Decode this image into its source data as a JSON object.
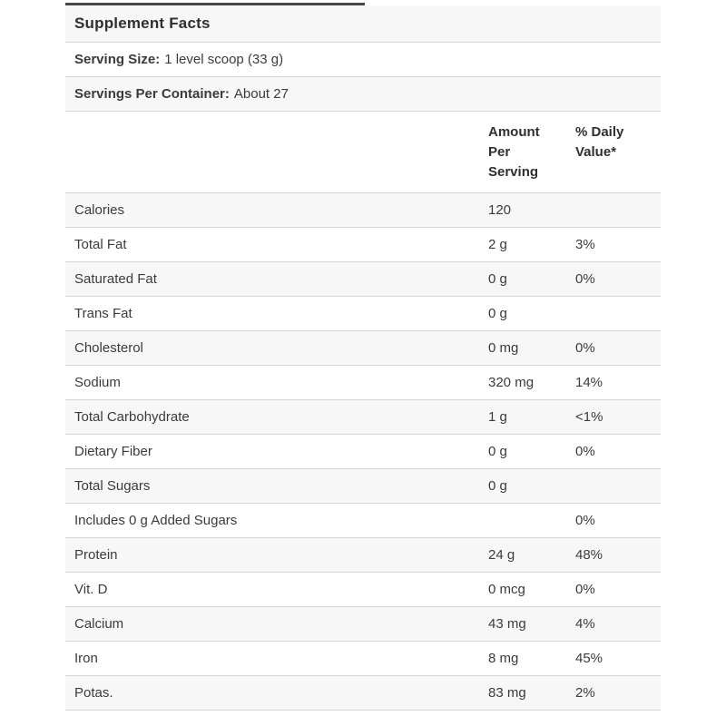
{
  "facts": {
    "title": "Supplement Facts",
    "serving_size": {
      "label": "Serving Size:",
      "value": "1 level scoop (33 g)"
    },
    "servings_per_container": {
      "label": "Servings Per Container:",
      "value": "About 27"
    },
    "columns": {
      "amount_header": "Amount Per Serving",
      "daily_value_header": "% Daily Value*"
    },
    "rows": [
      {
        "name": "Calories",
        "amount": "120",
        "daily_value": ""
      },
      {
        "name": "Total Fat",
        "amount": "2 g",
        "daily_value": "3%"
      },
      {
        "name": "Saturated Fat",
        "amount": "0 g",
        "daily_value": "0%"
      },
      {
        "name": "Trans Fat",
        "amount": "0 g",
        "daily_value": ""
      },
      {
        "name": "Cholesterol",
        "amount": "0 mg",
        "daily_value": "0%"
      },
      {
        "name": "Sodium",
        "amount": "320 mg",
        "daily_value": "14%"
      },
      {
        "name": "Total Carbohydrate",
        "amount": "1 g",
        "daily_value": "<1%"
      },
      {
        "name": "Dietary Fiber",
        "amount": "0 g",
        "daily_value": "0%"
      },
      {
        "name": "Total Sugars",
        "amount": "0 g",
        "daily_value": ""
      },
      {
        "name": "Includes 0 g Added Sugars",
        "amount": "",
        "daily_value": "0%"
      },
      {
        "name": "Protein",
        "amount": "24 g",
        "daily_value": "48%"
      },
      {
        "name": "Vit. D",
        "amount": "0 mcg",
        "daily_value": "0%"
      },
      {
        "name": "Calcium",
        "amount": "43 mg",
        "daily_value": "4%"
      },
      {
        "name": "Iron",
        "amount": "8 mg",
        "daily_value": "45%"
      },
      {
        "name": "Potas.",
        "amount": "83 mg",
        "daily_value": "2%"
      }
    ],
    "colors": {
      "stripe": "#f7f7f7",
      "separator": "#d6d6d6",
      "text": "#3b3b3b",
      "top_border": "#474747",
      "background": "#ffffff"
    }
  }
}
